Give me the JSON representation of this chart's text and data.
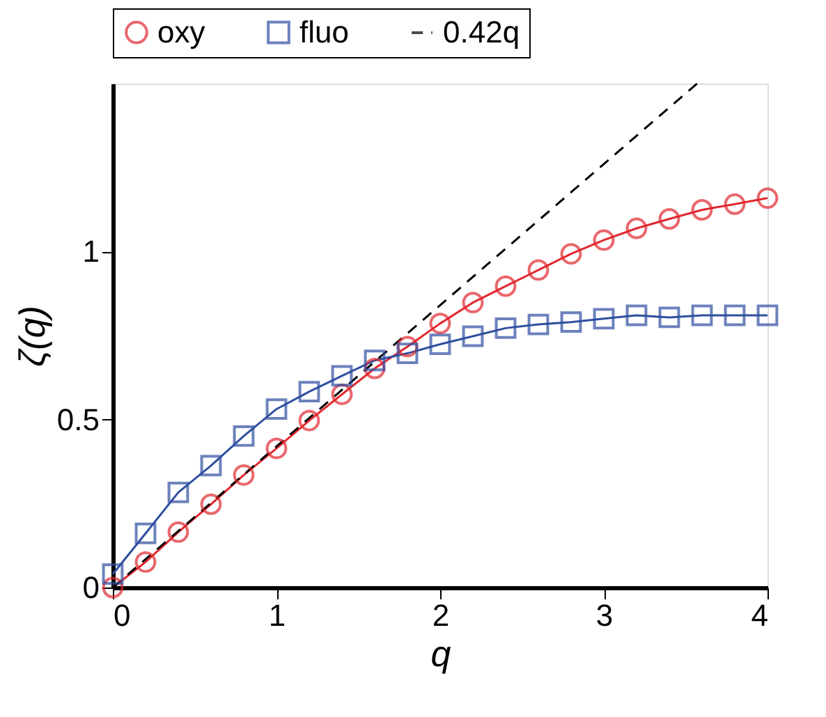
{
  "chart_data": {
    "type": "line",
    "xlabel": "q",
    "ylabel": "ζ(q)",
    "xlim": [
      0,
      4
    ],
    "ylim": [
      0,
      1.5
    ],
    "xticks": [
      0,
      1,
      2,
      3,
      4
    ],
    "yticks": [
      0,
      0.5,
      1
    ],
    "grid": false,
    "legend": "top",
    "x": [
      0,
      0.2,
      0.4,
      0.6,
      0.8,
      1.0,
      1.2,
      1.4,
      1.6,
      1.8,
      2.0,
      2.2,
      2.4,
      2.6,
      2.8,
      3.0,
      3.2,
      3.4,
      3.6,
      3.8,
      4.0
    ],
    "series": [
      {
        "name": "oxy",
        "color": "#e0282e",
        "marker": "circle",
        "line_style": "solid",
        "values": [
          0.0,
          0.076,
          0.165,
          0.248,
          0.335,
          0.414,
          0.497,
          0.575,
          0.652,
          0.717,
          0.786,
          0.848,
          0.897,
          0.945,
          0.993,
          1.034,
          1.069,
          1.097,
          1.124,
          1.141,
          1.159
        ]
      },
      {
        "name": "fluo",
        "color": "#2e4ea0",
        "marker": "square",
        "line_style": "solid",
        "values": [
          0.04,
          0.161,
          0.283,
          0.363,
          0.451,
          0.531,
          0.583,
          0.63,
          0.676,
          0.697,
          0.724,
          0.748,
          0.772,
          0.783,
          0.79,
          0.8,
          0.81,
          0.804,
          0.81,
          0.81,
          0.81
        ]
      },
      {
        "name": "0.42q",
        "color": "#000000",
        "marker": "none",
        "line_style": "dashed",
        "x": [
          0,
          3.57
        ],
        "values": [
          0,
          1.5
        ]
      }
    ]
  }
}
